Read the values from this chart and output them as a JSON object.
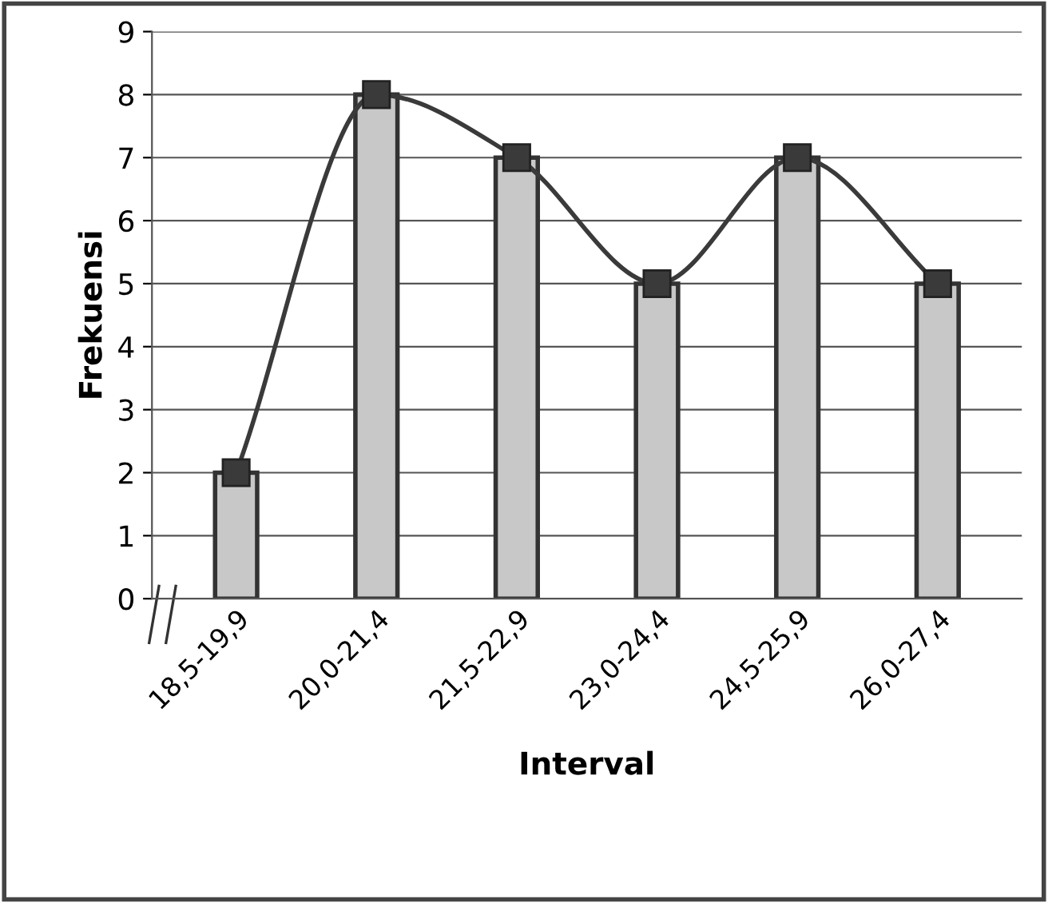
{
  "chart_data": {
    "type": "bar",
    "xlabel": "Interval",
    "ylabel": "Frekuensi",
    "categories": [
      "18,5-19,9",
      "20,0-21,4",
      "21,5-22,9",
      "23,0-24,4",
      "24,5-25,9",
      "26,0-27,4"
    ],
    "series": [
      {
        "color": "#c8c8c8",
        "values": [
          2,
          8,
          7,
          5,
          7,
          5
        ]
      },
      {
        "type": "line",
        "color": "#3a3a3a",
        "values": [
          2,
          8,
          7,
          5,
          7,
          5
        ],
        "marker": "square",
        "line_style": "solid"
      }
    ],
    "ylim": [
      0,
      9
    ],
    "yticks": [
      0,
      1,
      2,
      3,
      4,
      5,
      6,
      7,
      8,
      9
    ],
    "grid": "y",
    "legend": false
  }
}
